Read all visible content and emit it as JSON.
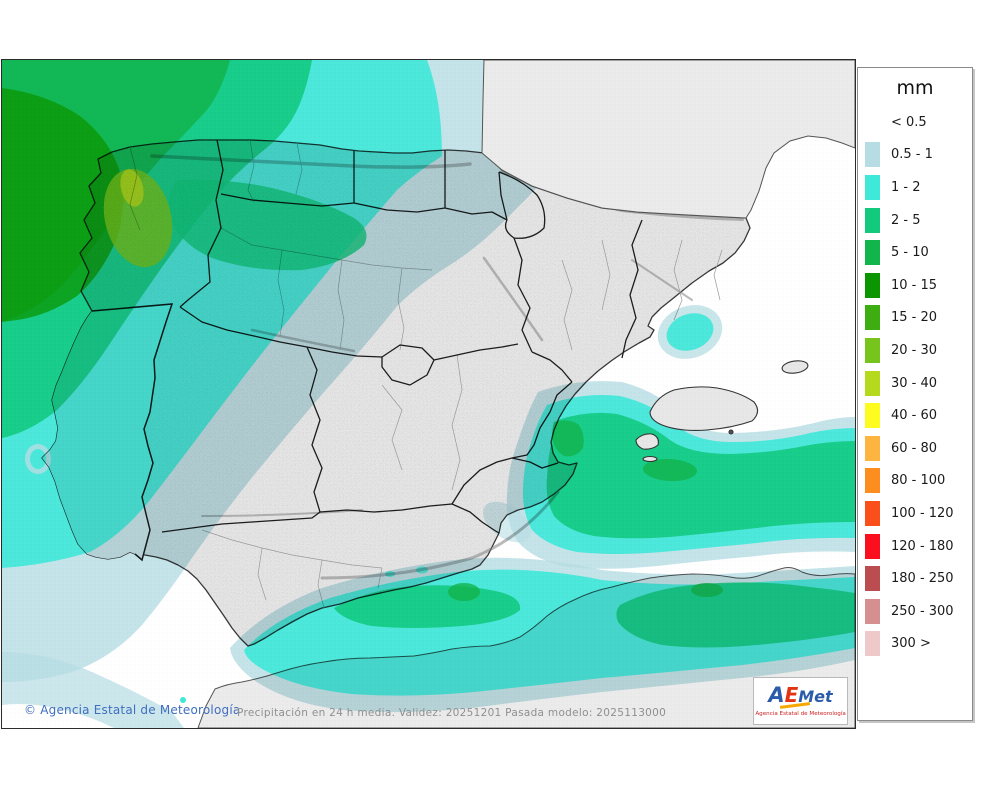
{
  "legend": {
    "unit": "mm",
    "entries": [
      {
        "label": "< 0.5",
        "color": null
      },
      {
        "label": "0.5 - 1",
        "color": "#b7dde4"
      },
      {
        "label": "1 - 2",
        "color": "#3fe9d9"
      },
      {
        "label": "2 - 5",
        "color": "#12c97e"
      },
      {
        "label": "5 - 10",
        "color": "#12b44c"
      },
      {
        "label": "10 - 15",
        "color": "#0b9500"
      },
      {
        "label": "15 - 20",
        "color": "#3ead12"
      },
      {
        "label": "20 - 30",
        "color": "#76c41c"
      },
      {
        "label": "30 - 40",
        "color": "#b5d91c"
      },
      {
        "label": "40 - 60",
        "color": "#fdfb1f"
      },
      {
        "label": "60 - 80",
        "color": "#fdb441"
      },
      {
        "label": "80 - 100",
        "color": "#fd8d1e"
      },
      {
        "label": "100 - 120",
        "color": "#fb4f1b"
      },
      {
        "label": "120 - 180",
        "color": "#fb0f1e"
      },
      {
        "label": "180 - 250",
        "color": "#bb4d50"
      },
      {
        "label": "250 - 300",
        "color": "#d68f91"
      },
      {
        "label": "300 >",
        "color": "#efc9c9"
      }
    ]
  },
  "footer": {
    "copyright": "© Agencia Estatal de Meteorología",
    "caption": "Precipitación en 24 h media. Validez: 20251201 Pasada modelo: 2025113000"
  },
  "logo": {
    "a": "A",
    "e": "E",
    "met": "Met",
    "caption": "Agencia Estatal de Meteorología"
  },
  "map_colors": {
    "sea": "#ffffff",
    "land": "#e7e7e7",
    "land_foreign": "#ebebeb",
    "portugal": "#eaeaea",
    "coastline": "#555555",
    "border_region": "#1c1c1c",
    "border_province": "#9a9a9a"
  }
}
